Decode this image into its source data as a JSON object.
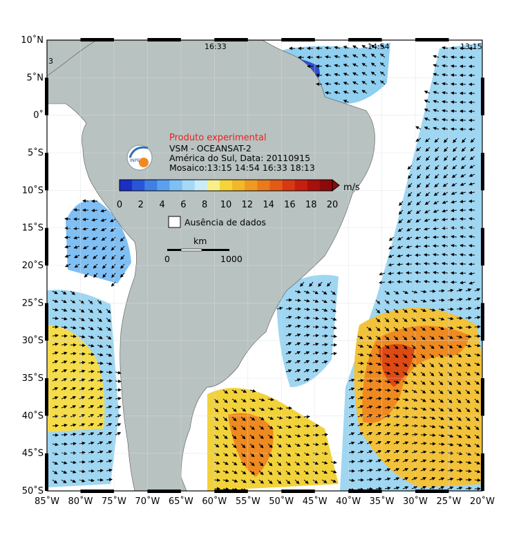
{
  "product_label": "Produto experimental",
  "info_lines": [
    "VSM - OCEANSAT-2",
    "América do Sul, Data: 20110915",
    "Mosaico:13:15 14:54 16:33 18:13"
  ],
  "pass_times": [
    "16:33",
    "14:54",
    "13:15"
  ],
  "edge_mark": "3",
  "colorbar": {
    "unit": "m/s",
    "ticks": [
      "0",
      "2",
      "4",
      "6",
      "8",
      "10",
      "12",
      "14",
      "16",
      "18",
      "20"
    ],
    "colors": [
      "#1b2fc4",
      "#2a55d8",
      "#3f7fe6",
      "#5aa0ee",
      "#7fbff4",
      "#a6d8f7",
      "#c9ecf7",
      "#f7f08a",
      "#f5d43a",
      "#f2b82a",
      "#ef9a22",
      "#ea7a1b",
      "#e35a16",
      "#d63a12",
      "#c41f10",
      "#a8100d",
      "#8c0a0b"
    ]
  },
  "legend": {
    "no_data": "Ausência de dados"
  },
  "scalebar": {
    "unit": "km",
    "start": "0",
    "end": "1000"
  },
  "axes": {
    "lat_labels": [
      "10˚N",
      "5˚N",
      "0˚",
      "5˚S",
      "10˚S",
      "15˚S",
      "20˚S",
      "25˚S",
      "30˚S",
      "35˚S",
      "40˚S",
      "45˚S",
      "50˚S"
    ],
    "lon_labels": [
      "85˚W",
      "80˚W",
      "75˚W",
      "70˚W",
      "65˚W",
      "60˚W",
      "55˚W",
      "50˚W",
      "45˚W",
      "40˚W",
      "35˚W",
      "30˚W",
      "25˚W",
      "20˚W"
    ]
  },
  "colors": {
    "land": "#b8c2c0",
    "ocean_bg": "#ffffff",
    "frame": "#000000",
    "red_text": "#e8211d"
  }
}
